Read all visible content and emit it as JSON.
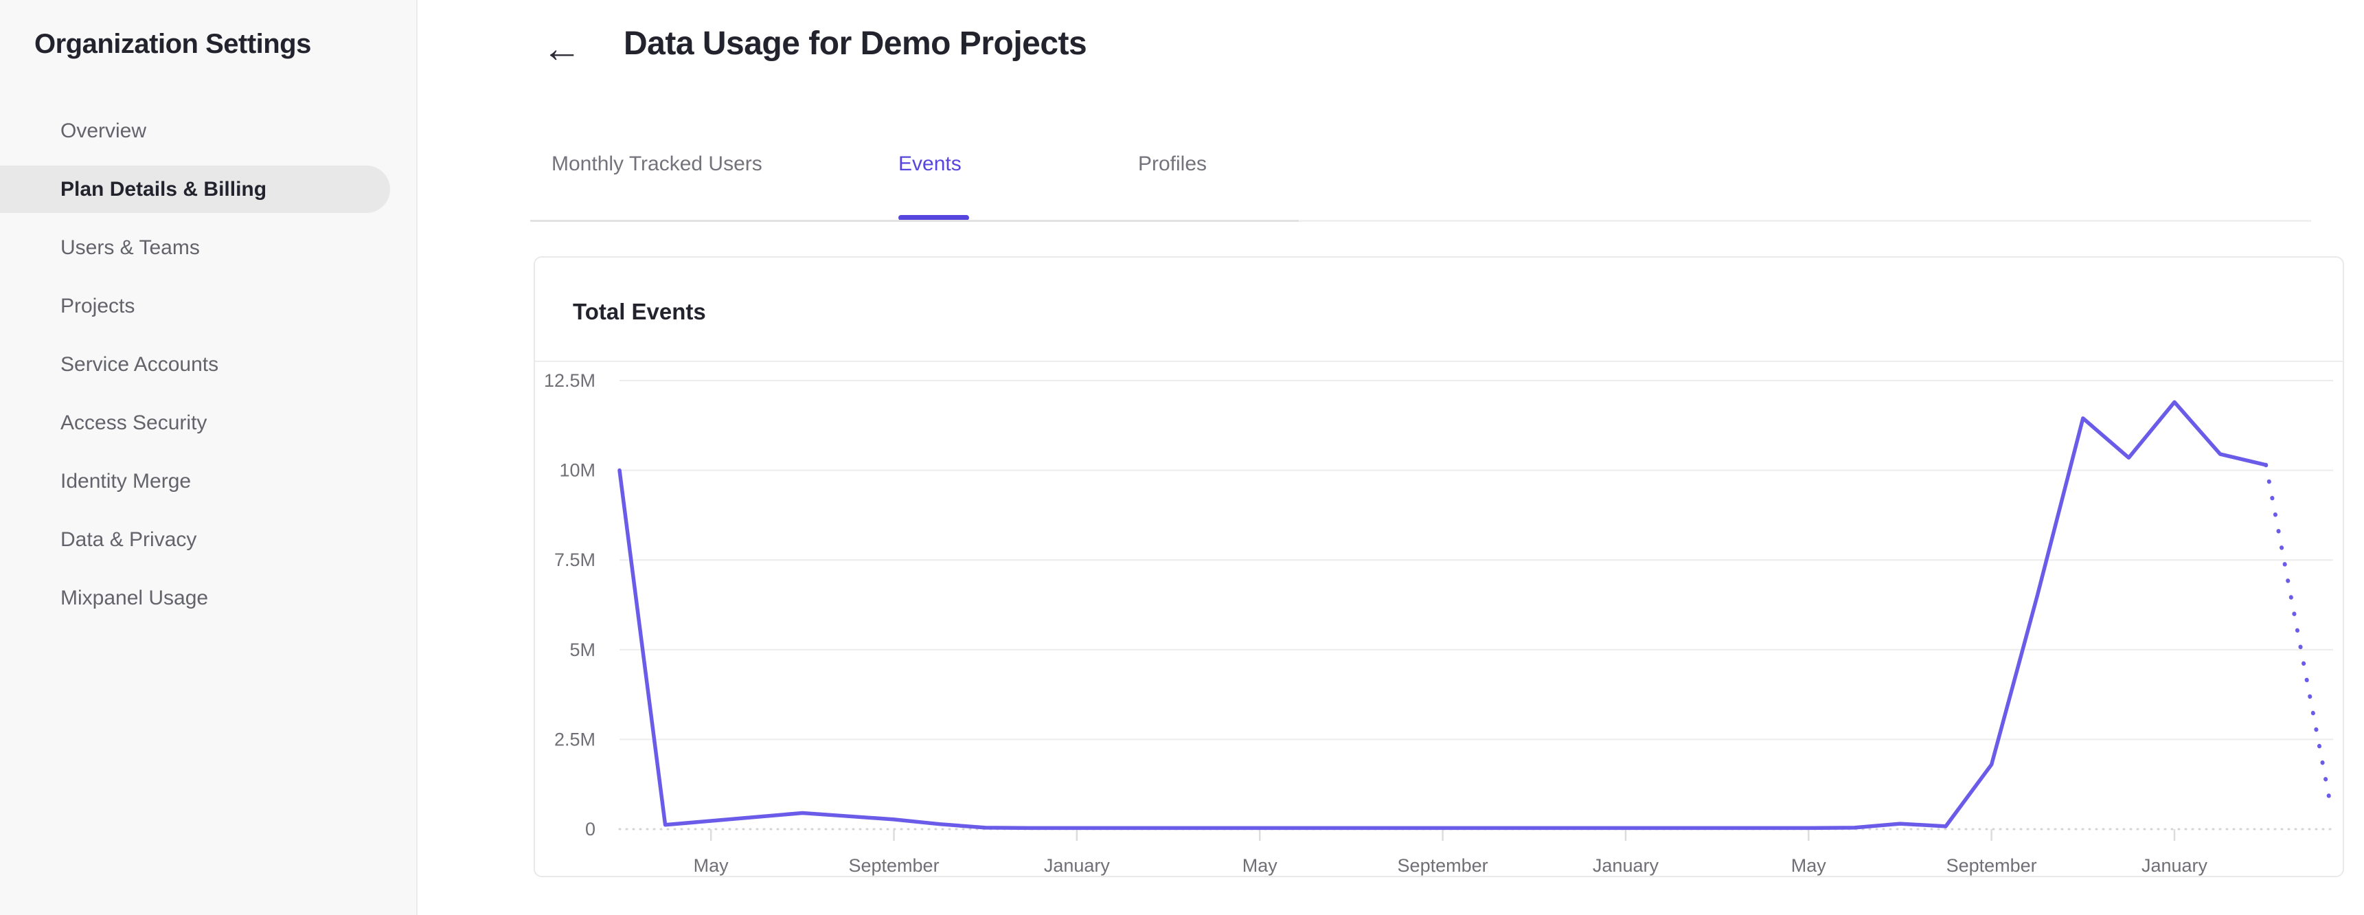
{
  "sidebar": {
    "title": "Organization Settings",
    "items": [
      {
        "label": "Overview",
        "active": false
      },
      {
        "label": "Plan Details & Billing",
        "active": true
      },
      {
        "label": "Users & Teams",
        "active": false
      },
      {
        "label": "Projects",
        "active": false
      },
      {
        "label": "Service Accounts",
        "active": false
      },
      {
        "label": "Access Security",
        "active": false
      },
      {
        "label": "Identity Merge",
        "active": false
      },
      {
        "label": "Data & Privacy",
        "active": false
      },
      {
        "label": "Mixpanel Usage",
        "active": false
      }
    ]
  },
  "header": {
    "back_icon": "←",
    "title": "Data Usage for Demo Projects"
  },
  "tabs": [
    {
      "label": "Monthly Tracked Users",
      "active": false
    },
    {
      "label": "Events",
      "active": true
    },
    {
      "label": "Profiles",
      "active": false
    }
  ],
  "card": {
    "title": "Total Events"
  },
  "colors": {
    "accent_tab": "#5646dd",
    "line": "#6a5ce8",
    "gridline": "#ececec",
    "zero_line": "#d4d4d4",
    "tick": "#dcdcdc",
    "axis_label": "#6f6f76",
    "sidebar_bg": "#f8f8f8",
    "sidebar_pill": "#e8e8e8",
    "text_dark": "#23232e",
    "text_gray": "#63636b"
  },
  "chart_data": {
    "type": "line",
    "title": "Total Events",
    "series_name": "Total Events",
    "x_start_month": "March (Year 1)",
    "x_step": "1 month",
    "values_millions": [
      10,
      0.12,
      0.23,
      0.34,
      0.45,
      0.36,
      0.27,
      0.14,
      0.04,
      0.03,
      0.03,
      0.03,
      0.03,
      0.03,
      0.03,
      0.03,
      0.03,
      0.03,
      0.03,
      0.03,
      0.03,
      0.03,
      0.03,
      0.03,
      0.03,
      0.03,
      0.03,
      0.04,
      0.15,
      0.08,
      1.8,
      6.5,
      11.45,
      10.35,
      11.9,
      10.45,
      10.15
    ],
    "projected_point": {
      "label": "April (Year 4)",
      "value_millions": 0.6,
      "style": "dotted"
    },
    "x_ticks": [
      {
        "month_index": 2,
        "label": "May"
      },
      {
        "month_index": 6,
        "label": "September"
      },
      {
        "month_index": 10,
        "label": "January"
      },
      {
        "month_index": 14,
        "label": "May"
      },
      {
        "month_index": 18,
        "label": "September"
      },
      {
        "month_index": 22,
        "label": "January"
      },
      {
        "month_index": 26,
        "label": "May"
      },
      {
        "month_index": 30,
        "label": "September"
      },
      {
        "month_index": 34,
        "label": "January"
      }
    ],
    "y_ticks": [
      {
        "label": "12.5M",
        "value": 12.5
      },
      {
        "label": "10M",
        "value": 10
      },
      {
        "label": "7.5M",
        "value": 7.5
      },
      {
        "label": "5M",
        "value": 5
      },
      {
        "label": "2.5M",
        "value": 2.5
      },
      {
        "label": "0",
        "value": 0
      }
    ],
    "ylim": [
      0,
      12.5
    ],
    "grid": "horizontal",
    "legend": "none",
    "line_color": "#6a5ce8"
  }
}
